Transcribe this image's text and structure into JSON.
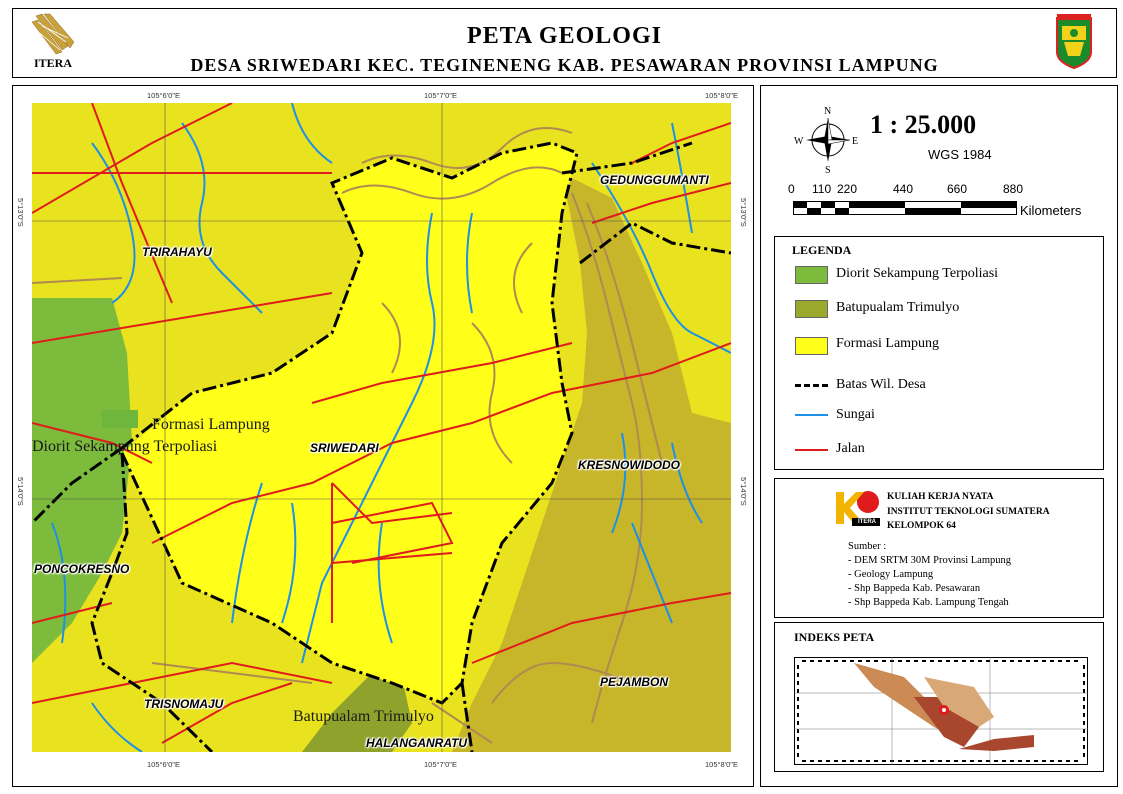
{
  "header": {
    "title": "PETA GEOLOGI",
    "subtitle": "DESA SRIWEDARI KEC. TEGINENENG KAB. PESAWARAN PROVINSI LAMPUNG",
    "left_logo_text": "ITERA",
    "right_logo_text": "PESAWARAN"
  },
  "map": {
    "colors": {
      "formasi_lampung": "#f2ef1e",
      "formasi_lampung_light": "#ffff1a",
      "batupualam": "#b8b42a",
      "diorit": "#7dbb3c",
      "contour": "#b08a50",
      "river": "#1e90e6",
      "road": "#e01b1b",
      "boundary": "#000000"
    },
    "village_labels": {
      "trirahayu": "TRIRAHAYU",
      "gedunggumanti": "GEDUNGGUMANTI",
      "sriwedari": "SRIWEDARI",
      "kresnowidodo": "KRESNOWIDODO",
      "poncokresno": "PONCOKRESNO",
      "pejambon": "PEJAMBON",
      "trisnomaju": "TRISNOMAJU",
      "halanganratu": "HALANGANRATU"
    },
    "geology_labels": {
      "formasi_lampung": "Formasi Lampung",
      "diorit": "Diorit Sekampung Terpoliasi",
      "batupualam": "Batupualam Trimulyo"
    },
    "grid": {
      "top": [
        "105°6'0\"E",
        "105°7'0\"E",
        "105°8'0\"E"
      ],
      "bottom": [
        "105°6'0\"E",
        "105°7'0\"E",
        "105°8'0\"E"
      ],
      "left": [
        "5°13'0\"S",
        "5°14'0\"S"
      ],
      "right": [
        "5°13'0\"S",
        "5°14'0\"S"
      ]
    }
  },
  "scale": {
    "ratio": "1 : 25.000",
    "datum": "WGS 1984",
    "ticks": [
      "0",
      "110",
      "220",
      "440",
      "660",
      "880"
    ],
    "unit": "Kilometers",
    "north": "N",
    "south": "S",
    "east": "E",
    "west": "W"
  },
  "legend": {
    "title": "LEGENDA",
    "items": [
      {
        "label": "Diorit Sekampung Terpoliasi",
        "color": "#7dbb3c"
      },
      {
        "label": "Batupualam Trimulyo",
        "color": "#9aa82b"
      },
      {
        "label": "Formasi Lampung",
        "color": "#ffff1a"
      },
      {
        "label": "Batas Wil. Desa",
        "color": "#000000"
      },
      {
        "label": "Sungai",
        "color": "#1e90e6"
      },
      {
        "label": "Jalan",
        "color": "#e01b1b"
      }
    ]
  },
  "credit": {
    "line1": "KULIAH KERJA NYATA",
    "line2": "INSTITUT TEKNOLOGI SUMATERA",
    "line3": "KELOMPOK 64",
    "logo_text": "ITERA",
    "sumber_title": "Sumber :",
    "sources": [
      "- DEM SRTM 30M Provinsi Lampung",
      "- Geology Lampung",
      "- Shp Bappeda Kab. Pesawaran",
      "- Shp Bappeda Kab. Lampung Tengah"
    ]
  },
  "index_map": {
    "title": "INDEKS PETA"
  }
}
